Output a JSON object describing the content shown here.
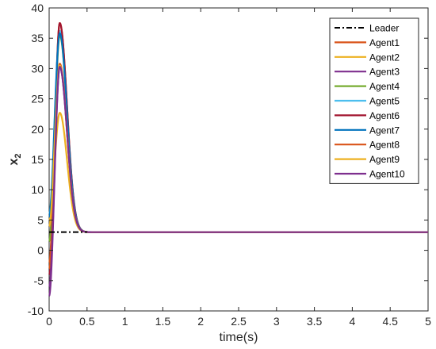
{
  "chart_data": {
    "type": "line",
    "xlabel": "time(s)",
    "ylabel_main": "x",
    "ylabel_sub": "2",
    "xlim": [
      0,
      5
    ],
    "ylim": [
      -10,
      40
    ],
    "xticks": [
      0,
      0.5,
      1,
      1.5,
      2,
      2.5,
      3,
      3.5,
      4,
      4.5,
      5
    ],
    "xtick_labels": [
      "0",
      "0.5",
      "1",
      "1.5",
      "2",
      "2.5",
      "3",
      "3.5",
      "4",
      "4.5",
      "5"
    ],
    "yticks": [
      -10,
      -5,
      0,
      5,
      10,
      15,
      20,
      25,
      30,
      35,
      40
    ],
    "ytick_labels": [
      "-10",
      "-5",
      "0",
      "5",
      "10",
      "15",
      "20",
      "25",
      "30",
      "35",
      "40"
    ],
    "grid": false,
    "legend_position": "top-right",
    "leader": {
      "name": "Leader",
      "color": "#000000",
      "style": "dash-dot",
      "x": [
        0,
        0.5
      ],
      "y": [
        3,
        3
      ]
    },
    "agents": [
      {
        "name": "Agent1",
        "color": "#D95319",
        "y0": -2.0,
        "peak": 37.5
      },
      {
        "name": "Agent2",
        "color": "#EDB120",
        "y0": 5.0,
        "peak": 22.7
      },
      {
        "name": "Agent3",
        "color": "#7E2F8E",
        "y0": -7.5,
        "peak": 30.3
      },
      {
        "name": "Agent4",
        "color": "#77AC30",
        "y0": 1.5,
        "peak": 35.5
      },
      {
        "name": "Agent5",
        "color": "#4DBEEE",
        "y0": 6.0,
        "peak": 36.2
      },
      {
        "name": "Agent6",
        "color": "#A2142F",
        "y0": -4.0,
        "peak": 37.5
      },
      {
        "name": "Agent7",
        "color": "#0072BD",
        "y0": 5.5,
        "peak": 35.8
      },
      {
        "name": "Agent8",
        "color": "#D95319",
        "y0": -3.0,
        "peak": 30.8
      },
      {
        "name": "Agent9",
        "color": "#EDB120",
        "y0": 4.0,
        "peak": 30.5
      },
      {
        "name": "Agent10",
        "color": "#7E2F8E",
        "y0": -6.0,
        "peak": 30.3
      }
    ],
    "steady_state": 3
  }
}
